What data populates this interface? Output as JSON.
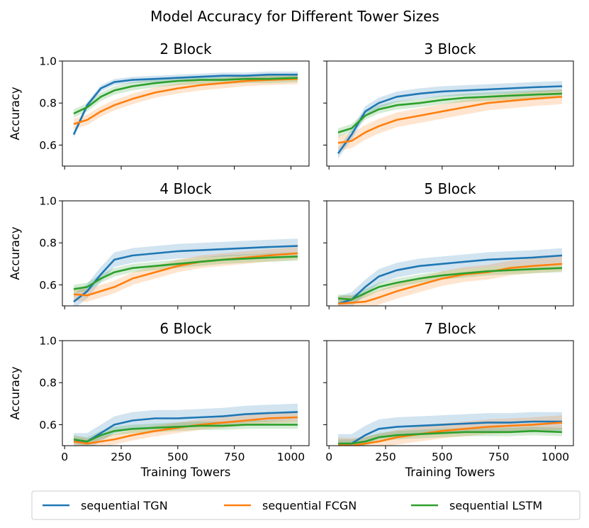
{
  "chart_data": {
    "type": "line",
    "title": "Model Accuracy for Different Tower Sizes",
    "xlabel": "Training Towers",
    "ylabel": "Accuracy",
    "xlim": [
      -10,
      1080
    ],
    "ylim": [
      0.5,
      1.0
    ],
    "xticks": [
      0,
      250,
      500,
      750,
      1000
    ],
    "yticks": [
      0.6,
      0.8,
      1.0
    ],
    "x": [
      40,
      100,
      160,
      220,
      300,
      400,
      500,
      600,
      700,
      800,
      900,
      1030
    ],
    "legend": {
      "position": "bottom",
      "items": [
        {
          "name": "sequential TGN",
          "color": "#1f77b4"
        },
        {
          "name": "sequential FCGN",
          "color": "#ff7f0e"
        },
        {
          "name": "sequential LSTM",
          "color": "#2ca02c"
        }
      ]
    },
    "panels": [
      {
        "title": "2 Block",
        "series": [
          {
            "name": "sequential TGN",
            "color": "#1f77b4",
            "band": 0.015,
            "values": [
              0.65,
              0.79,
              0.87,
              0.9,
              0.91,
              0.915,
              0.92,
              0.925,
              0.93,
              0.93,
              0.935,
              0.935
            ]
          },
          {
            "name": "sequential FCGN",
            "color": "#ff7f0e",
            "band": 0.025,
            "values": [
              0.7,
              0.72,
              0.76,
              0.79,
              0.82,
              0.85,
              0.87,
              0.885,
              0.895,
              0.905,
              0.91,
              0.915
            ]
          },
          {
            "name": "sequential LSTM",
            "color": "#2ca02c",
            "band": 0.02,
            "values": [
              0.75,
              0.78,
              0.83,
              0.86,
              0.88,
              0.895,
              0.905,
              0.91,
              0.91,
              0.915,
              0.915,
              0.92
            ]
          }
        ]
      },
      {
        "title": "3 Block",
        "series": [
          {
            "name": "sequential TGN",
            "color": "#1f77b4",
            "band": 0.025,
            "values": [
              0.56,
              0.65,
              0.76,
              0.8,
              0.83,
              0.845,
              0.855,
              0.86,
              0.865,
              0.87,
              0.875,
              0.88
            ]
          },
          {
            "name": "sequential FCGN",
            "color": "#ff7f0e",
            "band": 0.035,
            "values": [
              0.61,
              0.62,
              0.66,
              0.69,
              0.72,
              0.74,
              0.76,
              0.78,
              0.8,
              0.81,
              0.82,
              0.83
            ]
          },
          {
            "name": "sequential LSTM",
            "color": "#2ca02c",
            "band": 0.02,
            "values": [
              0.66,
              0.68,
              0.74,
              0.77,
              0.79,
              0.8,
              0.815,
              0.825,
              0.83,
              0.835,
              0.84,
              0.845
            ]
          }
        ]
      },
      {
        "title": "4 Block",
        "series": [
          {
            "name": "sequential TGN",
            "color": "#1f77b4",
            "band": 0.035,
            "values": [
              0.52,
              0.57,
              0.65,
              0.72,
              0.74,
              0.75,
              0.76,
              0.765,
              0.77,
              0.775,
              0.78,
              0.785
            ]
          },
          {
            "name": "sequential FCGN",
            "color": "#ff7f0e",
            "band": 0.03,
            "values": [
              0.555,
              0.55,
              0.57,
              0.59,
              0.63,
              0.66,
              0.69,
              0.71,
              0.72,
              0.73,
              0.74,
              0.75
            ]
          },
          {
            "name": "sequential LSTM",
            "color": "#2ca02c",
            "band": 0.02,
            "values": [
              0.58,
              0.59,
              0.63,
              0.66,
              0.68,
              0.69,
              0.7,
              0.71,
              0.72,
              0.725,
              0.73,
              0.735
            ]
          }
        ]
      },
      {
        "title": "5 Block",
        "series": [
          {
            "name": "sequential TGN",
            "color": "#1f77b4",
            "band": 0.035,
            "values": [
              0.51,
              0.53,
              0.59,
              0.64,
              0.67,
              0.69,
              0.7,
              0.71,
              0.72,
              0.725,
              0.73,
              0.74
            ]
          },
          {
            "name": "sequential FCGN",
            "color": "#ff7f0e",
            "band": 0.035,
            "values": [
              0.51,
              0.515,
              0.52,
              0.54,
              0.57,
              0.6,
              0.63,
              0.65,
              0.66,
              0.68,
              0.69,
              0.7
            ]
          },
          {
            "name": "sequential LSTM",
            "color": "#2ca02c",
            "band": 0.02,
            "values": [
              0.535,
              0.53,
              0.56,
              0.59,
              0.61,
              0.63,
              0.645,
              0.655,
              0.665,
              0.67,
              0.675,
              0.68
            ]
          }
        ]
      },
      {
        "title": "6 Block",
        "series": [
          {
            "name": "sequential TGN",
            "color": "#1f77b4",
            "band": 0.04,
            "values": [
              0.52,
              0.52,
              0.56,
              0.6,
              0.62,
              0.63,
              0.63,
              0.635,
              0.64,
              0.65,
              0.655,
              0.66
            ]
          },
          {
            "name": "sequential FCGN",
            "color": "#ff7f0e",
            "band": 0.025,
            "values": [
              0.52,
              0.51,
              0.52,
              0.53,
              0.55,
              0.57,
              0.585,
              0.6,
              0.61,
              0.62,
              0.63,
              0.635
            ]
          },
          {
            "name": "sequential LSTM",
            "color": "#2ca02c",
            "band": 0.02,
            "values": [
              0.53,
              0.52,
              0.55,
              0.57,
              0.58,
              0.585,
              0.59,
              0.595,
              0.595,
              0.6,
              0.6,
              0.6
            ]
          }
        ]
      },
      {
        "title": "7 Block",
        "series": [
          {
            "name": "sequential TGN",
            "color": "#1f77b4",
            "band": 0.045,
            "values": [
              0.51,
              0.51,
              0.55,
              0.58,
              0.59,
              0.595,
              0.6,
              0.605,
              0.61,
              0.61,
              0.615,
              0.615
            ]
          },
          {
            "name": "sequential FCGN",
            "color": "#ff7f0e",
            "band": 0.035,
            "values": [
              0.505,
              0.5,
              0.51,
              0.52,
              0.54,
              0.555,
              0.57,
              0.58,
              0.59,
              0.595,
              0.6,
              0.61
            ]
          },
          {
            "name": "sequential LSTM",
            "color": "#2ca02c",
            "band": 0.02,
            "values": [
              0.51,
              0.51,
              0.52,
              0.54,
              0.55,
              0.555,
              0.56,
              0.565,
              0.565,
              0.565,
              0.57,
              0.565
            ]
          }
        ]
      }
    ]
  }
}
